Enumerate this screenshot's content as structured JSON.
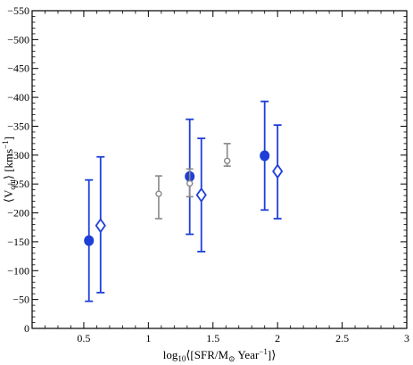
{
  "colors": {
    "blue": "#1f3fd6",
    "grey": "#888888",
    "axis": "#000000",
    "background": "#ffffff"
  },
  "chart_data": {
    "type": "scatter",
    "title": "",
    "xlabel": {
      "prefix": "log",
      "base": "10",
      "body": "⟨[SFR/M",
      "sun": "⊙",
      "unit": " Year",
      "exp": "−1",
      "suffix": "]⟩"
    },
    "ylabel": {
      "open": "⟨V",
      "sub": "out",
      "close": "⟩ [kms",
      "exp": "−1",
      "end": "]"
    },
    "xlim": [
      0.1,
      3.0
    ],
    "ylim": [
      0,
      -550
    ],
    "x_ticks": [
      {
        "value": 0.5,
        "label": "0.5"
      },
      {
        "value": 1.0,
        "label": "1"
      },
      {
        "value": 1.5,
        "label": "1.5"
      },
      {
        "value": 2.0,
        "label": "2"
      },
      {
        "value": 2.5,
        "label": "2.5"
      },
      {
        "value": 3.0,
        "label": "3"
      }
    ],
    "y_ticks": [
      {
        "value": 0,
        "label": "0"
      },
      {
        "value": -50,
        "label": "−50"
      },
      {
        "value": -100,
        "label": "−100"
      },
      {
        "value": -150,
        "label": "−150"
      },
      {
        "value": -200,
        "label": "−200"
      },
      {
        "value": -250,
        "label": "−250"
      },
      {
        "value": -300,
        "label": "−300"
      },
      {
        "value": -350,
        "label": "−350"
      },
      {
        "value": -400,
        "label": "−400"
      },
      {
        "value": -450,
        "label": "−450"
      },
      {
        "value": -500,
        "label": "−500"
      },
      {
        "value": -550,
        "label": "−550"
      }
    ],
    "grid": false,
    "legend": "none",
    "series": [
      {
        "marker": "filled-circle",
        "color": "blue",
        "points": [
          {
            "x": 0.54,
            "y": -152,
            "err_low": -47,
            "err_high": -257
          },
          {
            "x": 1.32,
            "y": -263,
            "err_low": -163,
            "err_high": -362
          },
          {
            "x": 1.9,
            "y": -299,
            "err_low": -205,
            "err_high": -393
          }
        ]
      },
      {
        "marker": "open-diamond",
        "color": "blue",
        "points": [
          {
            "x": 0.63,
            "y": -178,
            "err_low": -62,
            "err_high": -297
          },
          {
            "x": 1.41,
            "y": -231,
            "err_low": -133,
            "err_high": -329
          },
          {
            "x": 2.0,
            "y": -272,
            "err_low": -190,
            "err_high": -352
          }
        ]
      },
      {
        "marker": "open-circle",
        "color": "grey",
        "points": [
          {
            "x": 1.08,
            "y": -233,
            "err_low": -190,
            "err_high": -264
          },
          {
            "x": 1.32,
            "y": -251,
            "err_low": -228,
            "err_high": -276
          },
          {
            "x": 1.61,
            "y": -290,
            "err_low": -281,
            "err_high": -320
          }
        ]
      }
    ]
  }
}
